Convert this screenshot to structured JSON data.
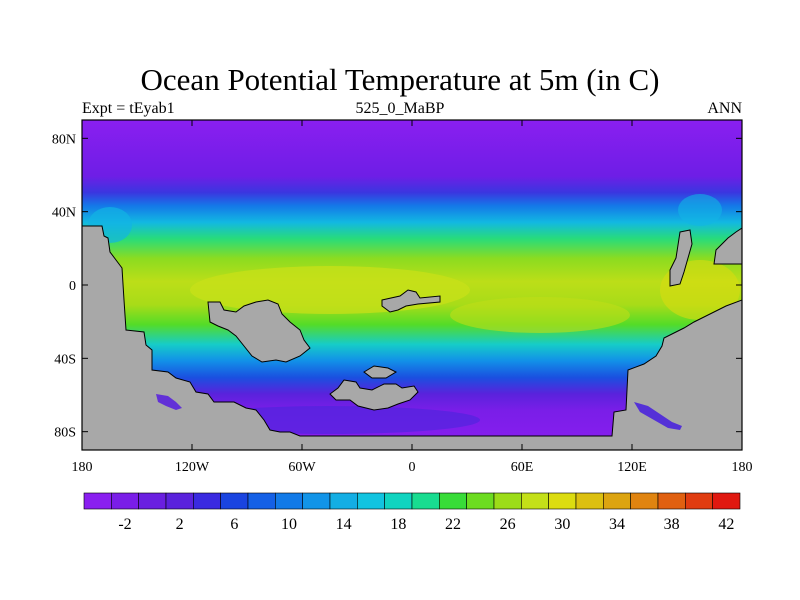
{
  "title": "Ocean Potential Temperature at 5m (in C)",
  "subtitle_left": "Expt = tEyab1",
  "subtitle_center": "525_0_MaBP",
  "subtitle_right": "ANN",
  "map": {
    "type": "filled-contour map",
    "variable": "Ocean Potential Temperature at 5m",
    "units": "C",
    "lon_range": [
      -180,
      180
    ],
    "lat_range": [
      -90,
      90
    ],
    "land_color": "#a8a8a8",
    "lon_ticks": [
      {
        "value": -180,
        "label": "180"
      },
      {
        "value": -120,
        "label": "120W"
      },
      {
        "value": -60,
        "label": "60W"
      },
      {
        "value": 0,
        "label": "0"
      },
      {
        "value": 60,
        "label": "60E"
      },
      {
        "value": 120,
        "label": "120E"
      },
      {
        "value": 180,
        "label": "180"
      }
    ],
    "lat_ticks": [
      {
        "value": 80,
        "label": "80N"
      },
      {
        "value": 40,
        "label": "40N"
      },
      {
        "value": 0,
        "label": "0"
      },
      {
        "value": -40,
        "label": "40S"
      },
      {
        "value": -80,
        "label": "80S"
      }
    ]
  },
  "colorbar": {
    "levels": [
      -4,
      -2,
      0,
      2,
      4,
      6,
      8,
      10,
      12,
      14,
      16,
      18,
      20,
      22,
      24,
      26,
      28,
      30,
      32,
      34,
      36,
      38,
      40,
      42,
      44
    ],
    "colors": [
      "#8a1ff0",
      "#7a1ee8",
      "#6a1fe0",
      "#5a22dc",
      "#3a2ae0",
      "#1a44e0",
      "#1460e6",
      "#127ae8",
      "#1294e8",
      "#13aee4",
      "#12c4e0",
      "#10d4c0",
      "#18dc90",
      "#38dc38",
      "#6cdc20",
      "#9cdc18",
      "#c4e018",
      "#dcdc10",
      "#dcc010",
      "#dca410",
      "#e08410",
      "#e06010",
      "#e03c10",
      "#e01810"
    ],
    "tick_labels": [
      "-2",
      "2",
      "6",
      "10",
      "14",
      "18",
      "22",
      "26",
      "30",
      "34",
      "38",
      "42"
    ]
  }
}
